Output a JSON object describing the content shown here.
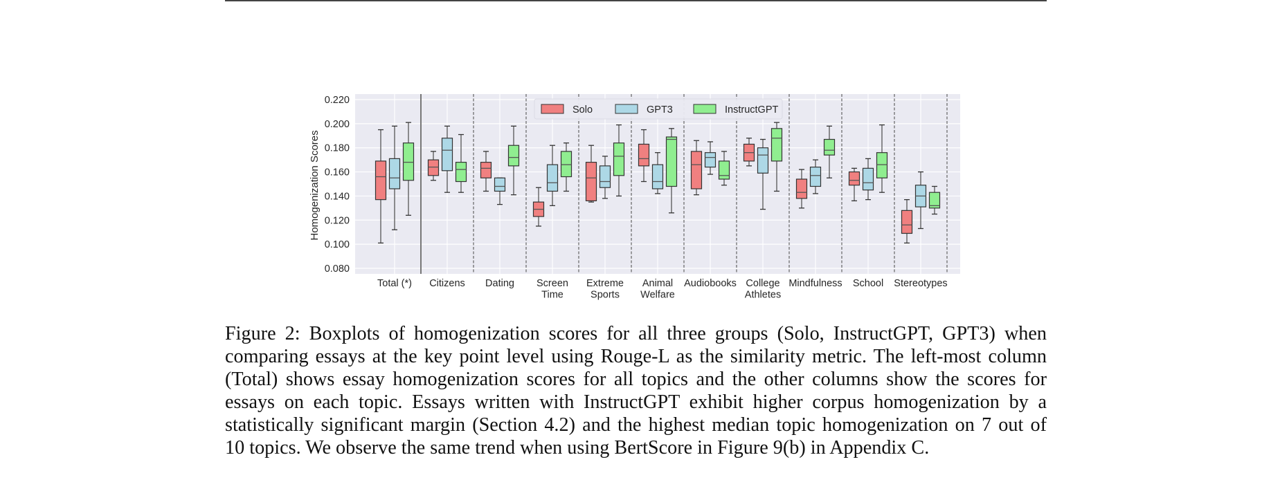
{
  "figure": {
    "caption_lines": [
      "Figure 2: Boxplots of homogenization scores for all three groups (Solo, InstructGPT, GPT3) when",
      "comparing essays at the key point level using Rouge-L as the similarity metric. The left-most column",
      "(Total) shows essay homogenization scores for all topics and the other columns show the scores for",
      "essays on each topic. Essays written with InstructGPT exhibit higher corpus homogenization by a",
      "statistically significant margin (Section 4.2) and the highest median topic homogenization on 7 out of",
      "10 topics. We observe the same trend when using BertScore in Figure 9(b) in Appendix C."
    ]
  },
  "chart_data": {
    "type": "box",
    "title": "",
    "xlabel": "",
    "ylabel": "Homogenization Scores",
    "ylim": [
      0.076,
      0.224
    ],
    "yticks": [
      0.08,
      0.1,
      0.12,
      0.14,
      0.16,
      0.18,
      0.2,
      0.22
    ],
    "ytick_labels": [
      "0.080",
      "0.100",
      "0.120",
      "0.140",
      "0.160",
      "0.180",
      "0.200",
      "0.220"
    ],
    "grid": true,
    "legend_position": "upper center",
    "categories": [
      [
        "Total (*)"
      ],
      [
        "Citizens"
      ],
      [
        "Dating"
      ],
      [
        "Screen",
        "Time"
      ],
      [
        "Extreme",
        "Sports"
      ],
      [
        "Animal",
        "Welfare"
      ],
      [
        "Audiobooks"
      ],
      [
        "College",
        "Athletes"
      ],
      [
        "Mindfulness"
      ],
      [
        "School"
      ],
      [
        "Stereotypes"
      ]
    ],
    "separators": [
      "solid",
      "dashed",
      "dashed",
      "dashed",
      "dashed",
      "dashed",
      "dashed",
      "dashed",
      "dashed",
      "dashed",
      "dashed"
    ],
    "series": [
      {
        "name": "Solo",
        "color": "#f08080",
        "boxes": [
          {
            "whislo": 0.101,
            "q1": 0.137,
            "med": 0.156,
            "q3": 0.169,
            "whishi": 0.195
          },
          {
            "whislo": 0.153,
            "q1": 0.157,
            "med": 0.164,
            "q3": 0.17,
            "whishi": 0.177
          },
          {
            "whislo": 0.144,
            "q1": 0.155,
            "med": 0.163,
            "q3": 0.168,
            "whishi": 0.177
          },
          {
            "whislo": 0.115,
            "q1": 0.123,
            "med": 0.129,
            "q3": 0.135,
            "whishi": 0.147
          },
          {
            "whislo": 0.135,
            "q1": 0.136,
            "med": 0.155,
            "q3": 0.168,
            "whishi": 0.182
          },
          {
            "whislo": 0.152,
            "q1": 0.165,
            "med": 0.171,
            "q3": 0.183,
            "whishi": 0.195
          },
          {
            "whislo": 0.141,
            "q1": 0.146,
            "med": 0.166,
            "q3": 0.177,
            "whishi": 0.186
          },
          {
            "whislo": 0.165,
            "q1": 0.169,
            "med": 0.176,
            "q3": 0.183,
            "whishi": 0.188
          },
          {
            "whislo": 0.13,
            "q1": 0.138,
            "med": 0.143,
            "q3": 0.154,
            "whishi": 0.162
          },
          {
            "whislo": 0.136,
            "q1": 0.149,
            "med": 0.153,
            "q3": 0.16,
            "whishi": 0.163
          },
          {
            "whislo": 0.101,
            "q1": 0.109,
            "med": 0.116,
            "q3": 0.128,
            "whishi": 0.137
          }
        ]
      },
      {
        "name": "GPT3",
        "color": "#add8e6",
        "boxes": [
          {
            "whislo": 0.112,
            "q1": 0.146,
            "med": 0.155,
            "q3": 0.171,
            "whishi": 0.198
          },
          {
            "whislo": 0.143,
            "q1": 0.161,
            "med": 0.178,
            "q3": 0.188,
            "whishi": 0.198
          },
          {
            "whislo": 0.133,
            "q1": 0.144,
            "med": 0.148,
            "q3": 0.155,
            "whishi": 0.155
          },
          {
            "whislo": 0.132,
            "q1": 0.144,
            "med": 0.151,
            "q3": 0.166,
            "whishi": 0.182
          },
          {
            "whislo": 0.138,
            "q1": 0.147,
            "med": 0.152,
            "q3": 0.165,
            "whishi": 0.173
          },
          {
            "whislo": 0.142,
            "q1": 0.146,
            "med": 0.152,
            "q3": 0.166,
            "whishi": 0.176
          },
          {
            "whislo": 0.158,
            "q1": 0.164,
            "med": 0.172,
            "q3": 0.176,
            "whishi": 0.185
          },
          {
            "whislo": 0.129,
            "q1": 0.159,
            "med": 0.174,
            "q3": 0.18,
            "whishi": 0.187
          },
          {
            "whislo": 0.142,
            "q1": 0.148,
            "med": 0.157,
            "q3": 0.164,
            "whishi": 0.17
          },
          {
            "whislo": 0.137,
            "q1": 0.145,
            "med": 0.151,
            "q3": 0.163,
            "whishi": 0.171
          },
          {
            "whislo": 0.113,
            "q1": 0.131,
            "med": 0.14,
            "q3": 0.149,
            "whishi": 0.16
          }
        ]
      },
      {
        "name": "InstructGPT",
        "color": "#90ee90",
        "boxes": [
          {
            "whislo": 0.124,
            "q1": 0.153,
            "med": 0.168,
            "q3": 0.184,
            "whishi": 0.201
          },
          {
            "whislo": 0.143,
            "q1": 0.152,
            "med": 0.162,
            "q3": 0.168,
            "whishi": 0.191
          },
          {
            "whislo": 0.141,
            "q1": 0.165,
            "med": 0.172,
            "q3": 0.182,
            "whishi": 0.198
          },
          {
            "whislo": 0.144,
            "q1": 0.156,
            "med": 0.166,
            "q3": 0.177,
            "whishi": 0.184
          },
          {
            "whislo": 0.14,
            "q1": 0.157,
            "med": 0.173,
            "q3": 0.184,
            "whishi": 0.199
          },
          {
            "whislo": 0.126,
            "q1": 0.148,
            "med": 0.187,
            "q3": 0.189,
            "whishi": 0.196
          },
          {
            "whislo": 0.149,
            "q1": 0.154,
            "med": 0.157,
            "q3": 0.169,
            "whishi": 0.177
          },
          {
            "whislo": 0.144,
            "q1": 0.169,
            "med": 0.188,
            "q3": 0.196,
            "whishi": 0.201
          },
          {
            "whislo": 0.155,
            "q1": 0.174,
            "med": 0.178,
            "q3": 0.187,
            "whishi": 0.198
          },
          {
            "whislo": 0.143,
            "q1": 0.155,
            "med": 0.166,
            "q3": 0.176,
            "whishi": 0.199
          },
          {
            "whislo": 0.125,
            "q1": 0.13,
            "med": 0.132,
            "q3": 0.143,
            "whishi": 0.148
          }
        ]
      }
    ]
  }
}
